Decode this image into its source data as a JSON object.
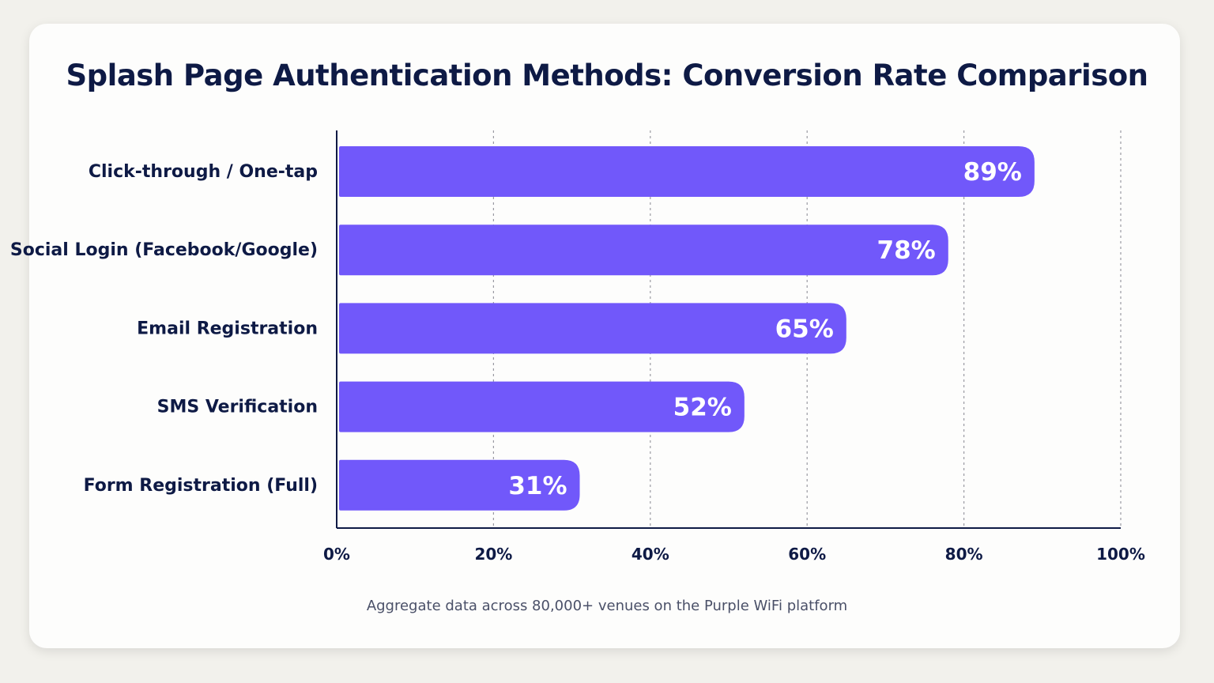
{
  "chart_data": {
    "type": "bar",
    "orientation": "horizontal",
    "title": "Splash Page Authentication Methods: Conversion Rate Comparison",
    "categories": [
      "Click-through / One-tap",
      "Social Login (Facebook/Google)",
      "Email Registration",
      "SMS Verification",
      "Form Registration (Full)"
    ],
    "values": [
      89,
      78,
      65,
      52,
      31
    ],
    "value_labels": [
      "89%",
      "78%",
      "65%",
      "52%",
      "31%"
    ],
    "xlim": [
      0,
      100
    ],
    "xticks": [
      0,
      20,
      40,
      60,
      80,
      100
    ],
    "xtick_labels": [
      "0%",
      "20%",
      "40%",
      "60%",
      "80%",
      "100%"
    ],
    "grid": true,
    "bar_color": "#7158fa",
    "footnote": "Aggregate data across 80,000+ venues on the Purple WiFi platform"
  }
}
